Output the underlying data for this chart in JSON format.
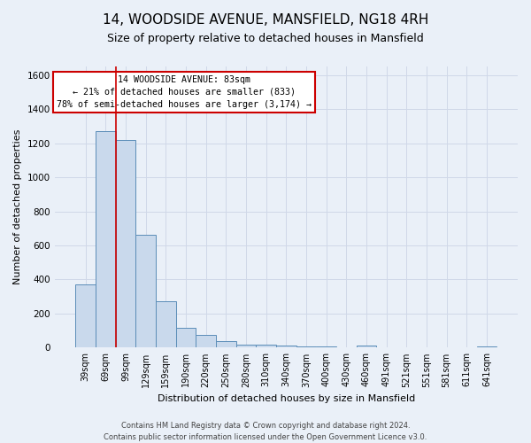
{
  "title": "14, WOODSIDE AVENUE, MANSFIELD, NG18 4RH",
  "subtitle": "Size of property relative to detached houses in Mansfield",
  "xlabel": "Distribution of detached houses by size in Mansfield",
  "ylabel": "Number of detached properties",
  "bar_labels": [
    "39sqm",
    "69sqm",
    "99sqm",
    "129sqm",
    "159sqm",
    "190sqm",
    "220sqm",
    "250sqm",
    "280sqm",
    "310sqm",
    "340sqm",
    "370sqm",
    "400sqm",
    "430sqm",
    "460sqm",
    "491sqm",
    "521sqm",
    "551sqm",
    "581sqm",
    "611sqm",
    "641sqm"
  ],
  "bar_values": [
    370,
    1270,
    1220,
    660,
    270,
    115,
    75,
    40,
    17,
    17,
    15,
    10,
    10,
    0,
    15,
    0,
    0,
    0,
    0,
    0,
    10
  ],
  "bar_color": "#c9d9ec",
  "bar_edge_color": "#5b8db8",
  "ylim": [
    0,
    1650
  ],
  "yticks": [
    0,
    200,
    400,
    600,
    800,
    1000,
    1200,
    1400,
    1600
  ],
  "vline_x": 1.5,
  "vline_color": "#cc0000",
  "annotation_line1": "14 WOODSIDE AVENUE: 83sqm",
  "annotation_line2": "← 21% of detached houses are smaller (833)",
  "annotation_line3": "78% of semi-detached houses are larger (3,174) →",
  "footer_line1": "Contains HM Land Registry data © Crown copyright and database right 2024.",
  "footer_line2": "Contains public sector information licensed under the Open Government Licence v3.0.",
  "grid_color": "#d0d8e8",
  "background_color": "#eaf0f8",
  "title_fontsize": 11,
  "subtitle_fontsize": 9,
  "axis_label_fontsize": 8,
  "tick_fontsize": 7
}
